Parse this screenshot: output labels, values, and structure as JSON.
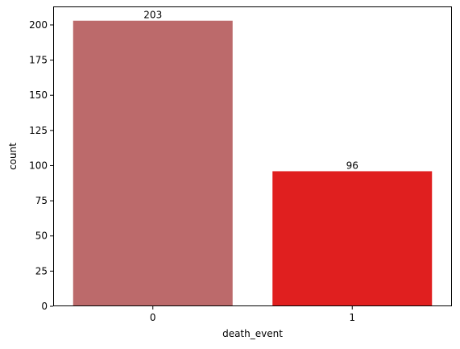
{
  "chart_data": {
    "type": "bar",
    "title": "",
    "xlabel": "death_event",
    "ylabel": "count",
    "categories": [
      "0",
      "1"
    ],
    "values": [
      203,
      96
    ],
    "data_labels": [
      "203",
      "96"
    ],
    "colors": [
      "#bc6a6b",
      "#e01f1f"
    ],
    "ylim": [
      0,
      213.15
    ],
    "yticks": [
      0,
      25,
      50,
      75,
      100,
      125,
      150,
      175,
      200
    ],
    "grid": false,
    "legend": "none"
  }
}
